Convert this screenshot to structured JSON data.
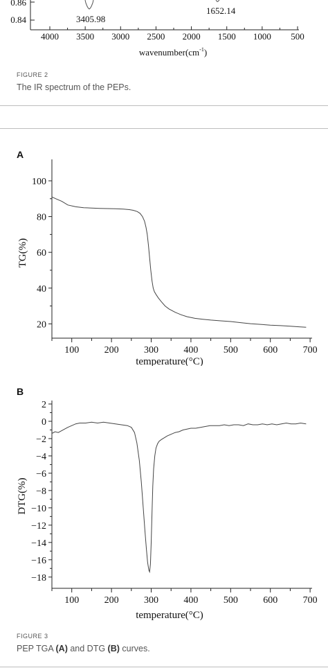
{
  "figure2": {
    "label": "FIGURE 2",
    "caption": "The IR spectrum of the PEPs.",
    "chart_data": {
      "type": "line",
      "xlabel": "wavenumber(cm",
      "xlabel_sup": "-1",
      "xlabel_close": ")",
      "xlim": [
        4000,
        500
      ],
      "x_ticks": [
        4000,
        3500,
        3000,
        2500,
        2000,
        1500,
        1000,
        500
      ],
      "y_ticks_visible": [
        "0.86",
        "0.84"
      ],
      "annotations": [
        "3405.98",
        "1652.14"
      ]
    }
  },
  "figure3": {
    "label": "FIGURE 3",
    "caption_parts": [
      "PEP TGA ",
      "(A)",
      " and DTG ",
      "(B)",
      " curves."
    ],
    "panel_a": {
      "panel_label": "A",
      "chart_data": {
        "type": "line",
        "xlabel": "temperature(°C)",
        "ylabel": "TG(%)",
        "xlim": [
          50,
          705
        ],
        "ylim": [
          12,
          112
        ],
        "x_ticks": [
          100,
          200,
          300,
          400,
          500,
          600,
          700
        ],
        "y_ticks": [
          20,
          40,
          60,
          80,
          100
        ],
        "series": [
          {
            "x": [
              50,
              60,
              75,
              90,
              110,
              130,
              150,
              170,
              190,
              210,
              230,
              245,
              255,
              265,
              272,
              278,
              283,
              287,
              290,
              293,
              296,
              299,
              302,
              305,
              308,
              312,
              318,
              325,
              335,
              345,
              360,
              375,
              390,
              410,
              430,
              450,
              475,
              500,
              525,
              550,
              575,
              600,
              625,
              650,
              675,
              690
            ],
            "y": [
              91,
              90,
              88.5,
              86.5,
              85.5,
              85,
              84.8,
              84.6,
              84.5,
              84.4,
              84.2,
              83.9,
              83.5,
              82.8,
              81.8,
              80,
              77.5,
              74,
              70,
              64,
              57,
              50,
              44,
              40,
              38,
              36.5,
              34.5,
              32.5,
              30,
              28.3,
              26.5,
              25.1,
              24,
              23.1,
              22.6,
              22.1,
              21.7,
              21.3,
              20.7,
              20.1,
              19.7,
              19.3,
              19,
              18.7,
              18.3,
              18.1
            ]
          }
        ]
      }
    },
    "panel_b": {
      "panel_label": "B",
      "chart_data": {
        "type": "line",
        "xlabel": "temperature(°C)",
        "ylabel": "DTG(%)",
        "xlim": [
          50,
          705
        ],
        "ylim": [
          -19.3,
          2.4
        ],
        "x_ticks": [
          100,
          200,
          300,
          400,
          500,
          600,
          700
        ],
        "y_ticks": [
          2,
          0,
          -2,
          -4,
          -6,
          -8,
          -10,
          -12,
          -14,
          -16,
          -18
        ],
        "series": [
          {
            "x": [
              50,
              58,
              66,
              74,
              82,
              90,
              100,
              110,
              120,
              135,
              150,
              165,
              180,
              195,
              210,
              225,
              240,
              250,
              258,
              264,
              270,
              275,
              280,
              284,
              288,
              291,
              294,
              296,
              298,
              300,
              302,
              304,
              306,
              309,
              312,
              316,
              320,
              326,
              333,
              340,
              350,
              360,
              370,
              380,
              390,
              400,
              412,
              424,
              436,
              448,
              460,
              472,
              484,
              496,
              508,
              520,
              532,
              544,
              556,
              568,
              580,
              592,
              604,
              616,
              628,
              640,
              652,
              664,
              676,
              690
            ],
            "y": [
              -1.4,
              -1.2,
              -1.3,
              -1.1,
              -0.9,
              -0.7,
              -0.5,
              -0.3,
              -0.2,
              -0.2,
              -0.1,
              -0.2,
              -0.1,
              -0.2,
              -0.3,
              -0.4,
              -0.5,
              -0.7,
              -1.3,
              -2.5,
              -4.5,
              -7,
              -10,
              -12.5,
              -14.8,
              -16.3,
              -17.2,
              -17.4,
              -16.5,
              -14,
              -10.5,
              -7.5,
              -5.5,
              -4,
              -3.1,
              -2.6,
              -2.3,
              -2.1,
              -1.9,
              -1.7,
              -1.5,
              -1.3,
              -1.2,
              -1.0,
              -0.9,
              -0.8,
              -0.8,
              -0.7,
              -0.6,
              -0.5,
              -0.5,
              -0.5,
              -0.4,
              -0.5,
              -0.4,
              -0.4,
              -0.5,
              -0.3,
              -0.4,
              -0.4,
              -0.3,
              -0.4,
              -0.3,
              -0.4,
              -0.3,
              -0.2,
              -0.3,
              -0.3,
              -0.2,
              -0.3
            ]
          }
        ]
      }
    }
  }
}
